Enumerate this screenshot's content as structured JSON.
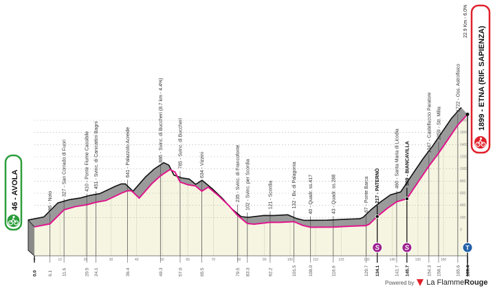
{
  "chart_data": {
    "type": "area",
    "title": "",
    "xlabel": "",
    "ylabel": "",
    "xlim": [
      0,
      169.4
    ],
    "ylim": [
      0,
      1800
    ],
    "x_ticks": [
      0,
      10,
      20,
      30,
      40,
      50,
      60,
      70,
      80,
      90,
      100,
      110,
      120,
      130,
      140,
      150,
      160
    ],
    "y_ticks": [
      0,
      200,
      400,
      600,
      800,
      1000,
      1200,
      1400,
      1600,
      1800
    ],
    "grid": true,
    "profile": [
      [
        0,
        46
      ],
      [
        6.1,
        96
      ],
      [
        11.6,
        327
      ],
      [
        16,
        380
      ],
      [
        20.5,
        410
      ],
      [
        24.1,
        451
      ],
      [
        28,
        480
      ],
      [
        34,
        600
      ],
      [
        36.4,
        641
      ],
      [
        38,
        640
      ],
      [
        41,
        520
      ],
      [
        46,
        760
      ],
      [
        49.3,
        886
      ],
      [
        53,
        990
      ],
      [
        55,
        950
      ],
      [
        57,
        785
      ],
      [
        60,
        740
      ],
      [
        63,
        720
      ],
      [
        65.5,
        634
      ],
      [
        68,
        700
      ],
      [
        72,
        560
      ],
      [
        76,
        400
      ],
      [
        79.5,
        235
      ],
      [
        83.3,
        102
      ],
      [
        86,
        90
      ],
      [
        92.2,
        121
      ],
      [
        96,
        120
      ],
      [
        101.5,
        132
      ],
      [
        105,
        70
      ],
      [
        108,
        40
      ],
      [
        116.9,
        43
      ],
      [
        125,
        60
      ],
      [
        129.7,
        67
      ],
      [
        131,
        90
      ],
      [
        134.1,
        217
      ],
      [
        138,
        350
      ],
      [
        141.7,
        460
      ],
      [
        145.7,
        509
      ],
      [
        150,
        780
      ],
      [
        154.3,
        1047
      ],
      [
        158.1,
        1259
      ],
      [
        162,
        1500
      ],
      [
        165.6,
        1722
      ],
      [
        169.4,
        1899
      ]
    ],
    "waypoints": [
      {
        "km": 0.0,
        "km_label": "0.0",
        "bold": true
      },
      {
        "km": 6.1,
        "km_label": "6.1",
        "label": "96 - Noto",
        "elev": 96
      },
      {
        "km": 11.6,
        "km_label": "11.6",
        "label": "327 - San Corrado di Fuori",
        "elev": 327
      },
      {
        "km": 20.5,
        "km_label": "20.5",
        "label": "410 - Ponte Fiume Cassibile",
        "elev": 410
      },
      {
        "km": 24.1,
        "km_label": "24.1",
        "label": "451 - Svinc. di Canicattini Bagni",
        "elev": 451
      },
      {
        "km": 36.4,
        "km_label": "36.4",
        "label": "641 - Palazzolo Acreide",
        "elev": 641
      },
      {
        "km": 49.3,
        "km_label": "49.3",
        "label": "886 - Svinc. di Buccheri (8.7 km - 4.4%)",
        "elev": 886
      },
      {
        "km": 57.0,
        "km_label": "57.0",
        "label": "785 - Svinc. di Buccheri",
        "elev": 785
      },
      {
        "km": 65.5,
        "km_label": "65.5",
        "label": "634 - Vizzini",
        "elev": 634
      },
      {
        "km": 79.5,
        "km_label": "79.5",
        "label": "235 - Svinc. di Francofonte",
        "elev": 235
      },
      {
        "km": 83.3,
        "km_label": "83.3",
        "label": "102 - Svinc. per Scordia",
        "elev": 102
      },
      {
        "km": 92.2,
        "km_label": "92.2",
        "label": "121 - Scordia",
        "elev": 121
      },
      {
        "km": 101.5,
        "km_label": "101.5",
        "label": "132 - Bv. di Palagonia",
        "elev": 132
      },
      {
        "km": 108.0,
        "km_label": "108.0",
        "label": "40 - Quadr. ss.417",
        "elev": 40
      },
      {
        "km": 116.9,
        "km_label": "116.9",
        "label": "43 - Quadr. ss.288",
        "elev": 43
      },
      {
        "km": 129.7,
        "km_label": "129.7",
        "label": "67 - Ponte Barca",
        "elev": 67
      },
      {
        "km": 134.1,
        "km_label": "134.1",
        "label": "217 - PATERNÒ",
        "elev": 217,
        "bold": true,
        "sprint": true
      },
      {
        "km": 141.7,
        "km_label": "141.7",
        "label": "460 - Santa Maria di Licodia",
        "elev": 460
      },
      {
        "km": 145.7,
        "km_label": "145.7",
        "label": "509 - BIANCAVILLA",
        "elev": 509,
        "bold": true,
        "sprint": true
      },
      {
        "km": 154.3,
        "km_label": "154.3",
        "label": "1047 - Castelluccio Paratore",
        "elev": 1047
      },
      {
        "km": 158.1,
        "km_label": "158.1",
        "label": "1259 - Str. Milia",
        "elev": 1259
      },
      {
        "km": 165.6,
        "km_label": "165.6",
        "label": "1722 - Oss. Astrofisico",
        "elev": 1722
      },
      {
        "km": 169.4,
        "km_label": "169.4",
        "bold": true
      }
    ],
    "final_climb": "22.9 Km - 6.0%",
    "sprint_icon_label": "S",
    "finish_icon_label": "T"
  },
  "start": {
    "label": "46 - AVOLA",
    "icon": "cyclist-icon",
    "color": "#2a9d3a"
  },
  "finish": {
    "label": "1899 - ETNA (RIF. SAPIENZA)",
    "icon": "cyclist-icon",
    "color": "#e0202a"
  },
  "colors": {
    "profile": "#e0158c",
    "fill": "#f6f5e2",
    "shade": "#9a9a9a",
    "sprint": "#9b1f8e",
    "finish_marker": "#2160a8"
  },
  "footer": {
    "powered_by": "Powered by",
    "brand_a": "La Flamme",
    "brand_b": "Rouge"
  }
}
